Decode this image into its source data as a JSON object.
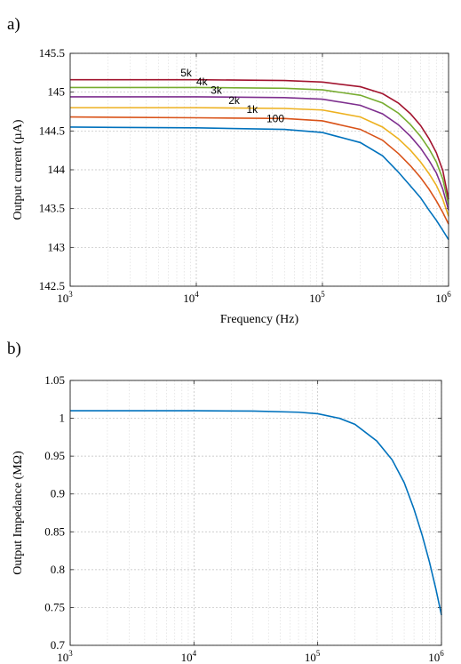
{
  "chart_data": [
    {
      "panel_label": "a)",
      "type": "line",
      "xlabel": "Frequency (Hz)",
      "ylabel": "Output current (µA)",
      "xscale": "log",
      "xlim": [
        1000,
        1000000
      ],
      "ylim": [
        142.5,
        145.5
      ],
      "x_ticks": [
        {
          "base": "10",
          "exp": "3"
        },
        {
          "base": "10",
          "exp": "4"
        },
        {
          "base": "10",
          "exp": "5"
        },
        {
          "base": "10",
          "exp": "6"
        }
      ],
      "y_ticks": [
        "145.5",
        "145",
        "144.5",
        "144",
        "143.5",
        "143",
        "142.5"
      ],
      "grid": true,
      "series": [
        {
          "name": "100",
          "color": "#0072BD",
          "x": [
            1000,
            10000,
            50000,
            100000,
            200000,
            300000,
            400000,
            500000,
            600000,
            700000,
            800000,
            900000,
            1000000
          ],
          "y": [
            144.55,
            144.54,
            144.52,
            144.48,
            144.35,
            144.18,
            143.97,
            143.79,
            143.64,
            143.48,
            143.35,
            143.22,
            143.1
          ]
        },
        {
          "name": "1k",
          "color": "#D95319",
          "x": [
            1000,
            10000,
            50000,
            100000,
            200000,
            300000,
            400000,
            500000,
            600000,
            700000,
            800000,
            900000,
            1000000
          ],
          "y": [
            144.68,
            144.67,
            144.66,
            144.63,
            144.52,
            144.38,
            144.21,
            144.05,
            143.9,
            143.75,
            143.6,
            143.45,
            143.3
          ]
        },
        {
          "name": "2k",
          "color": "#EDB120",
          "x": [
            1000,
            10000,
            50000,
            100000,
            200000,
            300000,
            400000,
            500000,
            600000,
            700000,
            800000,
            900000,
            1000000
          ],
          "y": [
            144.8,
            144.8,
            144.79,
            144.77,
            144.68,
            144.55,
            144.4,
            144.25,
            144.1,
            143.95,
            143.8,
            143.62,
            143.4
          ]
        },
        {
          "name": "3k",
          "color": "#7E2F8E",
          "x": [
            1000,
            10000,
            50000,
            100000,
            200000,
            300000,
            400000,
            500000,
            600000,
            700000,
            800000,
            900000,
            1000000
          ],
          "y": [
            144.94,
            144.94,
            144.93,
            144.91,
            144.83,
            144.72,
            144.58,
            144.43,
            144.28,
            144.12,
            143.96,
            143.75,
            143.48
          ]
        },
        {
          "name": "4k",
          "color": "#77AC30",
          "x": [
            1000,
            10000,
            50000,
            100000,
            200000,
            300000,
            400000,
            500000,
            600000,
            700000,
            800000,
            900000,
            1000000
          ],
          "y": [
            145.06,
            145.06,
            145.05,
            145.03,
            144.96,
            144.86,
            144.73,
            144.58,
            144.43,
            144.27,
            144.1,
            143.88,
            143.55
          ]
        },
        {
          "name": "5k",
          "color": "#A2142F",
          "x": [
            1000,
            10000,
            50000,
            100000,
            200000,
            300000,
            400000,
            500000,
            600000,
            700000,
            800000,
            900000,
            1000000
          ],
          "y": [
            145.16,
            145.16,
            145.15,
            145.13,
            145.07,
            144.98,
            144.86,
            144.72,
            144.57,
            144.4,
            144.22,
            143.99,
            143.62
          ]
        }
      ],
      "annotations": [
        {
          "text": "5k",
          "x": 7500,
          "y": 145.2
        },
        {
          "text": "4k",
          "x": 10000,
          "y": 145.09
        },
        {
          "text": "3k",
          "x": 13000,
          "y": 144.98
        },
        {
          "text": "2k",
          "x": 18000,
          "y": 144.85
        },
        {
          "text": "1k",
          "x": 25000,
          "y": 144.73
        },
        {
          "text": "100",
          "x": 36000,
          "y": 144.61
        }
      ]
    },
    {
      "panel_label": "b)",
      "type": "line",
      "xlabel": "Frequency (Hz)",
      "ylabel": "Output Impedance (MΩ)",
      "xscale": "log",
      "xlim": [
        1000,
        1000000
      ],
      "ylim": [
        0.7,
        1.05
      ],
      "x_ticks": [
        {
          "base": "10",
          "exp": "3"
        },
        {
          "base": "10",
          "exp": "4"
        },
        {
          "base": "10",
          "exp": "5"
        },
        {
          "base": "10",
          "exp": "6"
        }
      ],
      "y_ticks": [
        "1.05",
        "1",
        "0.95",
        "0.9",
        "0.85",
        "0.8",
        "0.75",
        "0.7"
      ],
      "grid": true,
      "series": [
        {
          "color": "#0072BD",
          "x": [
            1000,
            10000,
            30000,
            70000,
            100000,
            150000,
            200000,
            300000,
            400000,
            500000,
            600000,
            700000,
            800000,
            900000,
            1000000
          ],
          "y": [
            1.01,
            1.01,
            1.0095,
            1.008,
            1.006,
            1.0,
            0.992,
            0.97,
            0.945,
            0.915,
            0.88,
            0.845,
            0.81,
            0.775,
            0.74
          ]
        }
      ]
    }
  ]
}
